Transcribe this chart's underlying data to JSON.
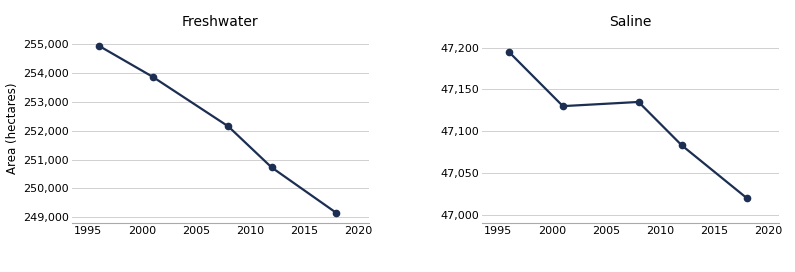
{
  "freshwater": {
    "title": "Freshwater",
    "x": [
      1996,
      2001,
      2008,
      2012,
      2018
    ],
    "y": [
      254950,
      253870,
      252150,
      250730,
      249150
    ],
    "ylim": [
      248800,
      255400
    ],
    "yticks": [
      249000,
      250000,
      251000,
      252000,
      253000,
      254000,
      255000
    ],
    "ylabel": "Area (hectares)"
  },
  "saline": {
    "title": "Saline",
    "x": [
      1996,
      2001,
      2008,
      2012,
      2018
    ],
    "y": [
      47195,
      47130,
      47135,
      47083,
      47020
    ],
    "ylim": [
      46990,
      47218
    ],
    "yticks": [
      47000,
      47050,
      47100,
      47150,
      47200
    ]
  },
  "xlim": [
    1993.5,
    2021
  ],
  "xticks": [
    1995,
    2000,
    2005,
    2010,
    2015,
    2020
  ],
  "line_color": "#1c2e52",
  "marker": "o",
  "marker_color": "#1c2e52",
  "marker_size": 4.5,
  "line_width": 1.6,
  "grid_color": "#d0d0d0",
  "background_color": "#ffffff",
  "title_fontsize": 10,
  "label_fontsize": 8.5,
  "tick_fontsize": 8
}
